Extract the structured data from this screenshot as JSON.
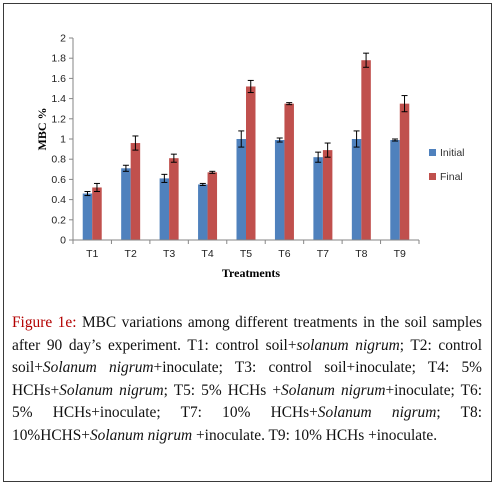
{
  "chart_data": {
    "type": "bar",
    "categories": [
      "T1",
      "T2",
      "T3",
      "T4",
      "T5",
      "T6",
      "T7",
      "T8",
      "T9"
    ],
    "series": [
      {
        "name": "Initial",
        "color": "#4f81bd",
        "values": [
          0.46,
          0.71,
          0.61,
          0.55,
          1.0,
          0.99,
          0.82,
          1.0,
          0.99
        ],
        "errors": [
          0.02,
          0.03,
          0.04,
          0.01,
          0.08,
          0.02,
          0.05,
          0.08,
          0.01
        ]
      },
      {
        "name": "Final",
        "color": "#c0504d",
        "values": [
          0.52,
          0.96,
          0.81,
          0.67,
          1.52,
          1.35,
          0.89,
          1.78,
          1.35
        ],
        "errors": [
          0.04,
          0.07,
          0.04,
          0.01,
          0.06,
          0.01,
          0.07,
          0.07,
          0.08
        ]
      }
    ],
    "ylim": [
      0,
      2
    ],
    "yticks": [
      "0",
      "0.2",
      "0.4",
      "0.6",
      "0.8",
      "1",
      "1.2",
      "1.4",
      "1.6",
      "1.8",
      "2"
    ],
    "ylabel": "MBC %",
    "xlabel": "Treatments",
    "legend_position": "right",
    "grid": false
  },
  "caption": {
    "label": "Figure 1e:",
    "text": "MBC variations among different treatments in the soil samples after 90 day’s experiment. T1: control soil+solanum nigrum; T2: control soil+Solanum nigrum+inoculate; T3: control soil+inoculate; T4: 5% HCHs+Solanum nigrum; T5: 5% HCHs +Solanum nigrum+inoculate; T6: 5% HCHs+inoculate; T7: 10% HCHs+Solanum nigrum; T8: 10%HCHS+Solanum nigrum +inoculate. T9: 10% HCHs +inoculate."
  }
}
